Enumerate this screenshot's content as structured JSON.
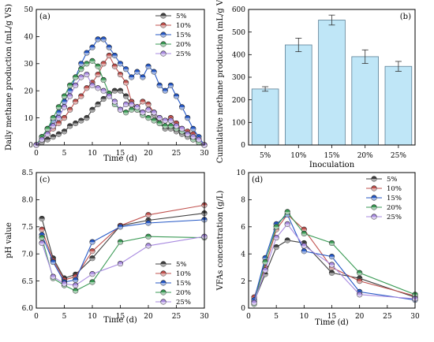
{
  "colors": {
    "5%": "#404040",
    "10%": "#c0504d",
    "15%": "#2457c5",
    "20%": "#3a9a55",
    "25%": "#a98be0",
    "bar_fill": "#bfe6f7",
    "bar_stroke": "#5b7f95"
  },
  "chart_data": [
    {
      "panel": "(a)",
      "type": "line",
      "xlabel": "Time (d)",
      "ylabel": "Daily methane production (mL/g VS)",
      "xlim": [
        0,
        30
      ],
      "ylim": [
        0,
        50
      ],
      "xticks": [
        0,
        5,
        10,
        15,
        20,
        25,
        30
      ],
      "yticks": [
        0,
        10,
        20,
        30,
        40,
        50
      ],
      "legend_position": "top-right",
      "series": [
        {
          "name": "5%",
          "x": [
            0,
            1,
            2,
            3,
            4,
            5,
            6,
            7,
            8,
            9,
            10,
            11,
            12,
            13,
            14,
            15,
            16,
            17,
            18,
            19,
            20,
            21,
            22,
            23,
            24,
            25,
            26,
            27,
            28,
            29,
            30
          ],
          "y": [
            0,
            1,
            2,
            3,
            4,
            5,
            7,
            8,
            9,
            10,
            13,
            15,
            17,
            19,
            20,
            20,
            18,
            15,
            13,
            12,
            13,
            11,
            8,
            6,
            6,
            5,
            4,
            3,
            2,
            1,
            0
          ]
        },
        {
          "name": "10%",
          "x": [
            0,
            1,
            2,
            3,
            4,
            5,
            6,
            7,
            8,
            9,
            10,
            11,
            12,
            13,
            14,
            15,
            16,
            17,
            18,
            19,
            20,
            21,
            22,
            23,
            24,
            25,
            26,
            27,
            28,
            29,
            30
          ],
          "y": [
            0,
            2,
            4,
            6,
            8,
            10,
            13,
            16,
            18,
            21,
            23,
            26,
            30,
            33,
            29,
            26,
            23,
            16,
            14,
            16,
            15,
            12,
            10,
            9,
            10,
            8,
            6,
            5,
            4,
            2,
            0
          ]
        },
        {
          "name": "15%",
          "x": [
            0,
            1,
            2,
            3,
            4,
            5,
            6,
            7,
            8,
            9,
            10,
            11,
            12,
            13,
            14,
            15,
            16,
            17,
            18,
            19,
            20,
            21,
            22,
            23,
            24,
            25,
            26,
            27,
            28,
            29,
            30
          ],
          "y": [
            0,
            3,
            6,
            9,
            12,
            16,
            20,
            25,
            30,
            34,
            36,
            39,
            39,
            36,
            33,
            30,
            28,
            25,
            27,
            25,
            29,
            27,
            22,
            20,
            22,
            18,
            14,
            10,
            6,
            3,
            0
          ]
        },
        {
          "name": "20%",
          "x": [
            0,
            1,
            2,
            3,
            4,
            5,
            6,
            7,
            8,
            9,
            10,
            11,
            12,
            13,
            14,
            15,
            16,
            17,
            18,
            19,
            20,
            21,
            22,
            23,
            24,
            25,
            26,
            27,
            28,
            29,
            30
          ],
          "y": [
            0,
            3,
            6,
            10,
            14,
            18,
            22,
            25,
            28,
            30,
            31,
            29,
            24,
            19,
            15,
            13,
            12,
            13,
            13,
            11,
            10,
            9,
            8,
            7,
            7,
            6,
            5,
            4,
            2,
            1,
            0
          ]
        },
        {
          "name": "25%",
          "x": [
            0,
            1,
            2,
            3,
            4,
            5,
            6,
            7,
            8,
            9,
            10,
            11,
            12,
            13,
            14,
            15,
            16,
            17,
            18,
            19,
            20,
            21,
            22,
            23,
            24,
            25,
            26,
            27,
            28,
            29,
            30
          ],
          "y": [
            0,
            2,
            4,
            7,
            10,
            14,
            18,
            22,
            25,
            26,
            22,
            21,
            20,
            18,
            16,
            13,
            15,
            15,
            14,
            12,
            13,
            12,
            10,
            9,
            9,
            7,
            6,
            4,
            3,
            2,
            0
          ]
        }
      ]
    },
    {
      "panel": "(b)",
      "type": "bar",
      "xlabel": "Inoculation",
      "ylabel": "Cumulative methane production (mL/g VS)",
      "categories": [
        "5%",
        "10%",
        "15%",
        "20%",
        "25%"
      ],
      "values": [
        248,
        443,
        553,
        391,
        348
      ],
      "errors": [
        10,
        30,
        22,
        30,
        22
      ],
      "ylim": [
        0,
        600
      ],
      "yticks": [
        0,
        100,
        200,
        300,
        400,
        500,
        600
      ]
    },
    {
      "panel": "(c)",
      "type": "line",
      "xlabel": "Time (d)",
      "ylabel": "pH value",
      "xlim": [
        0,
        30
      ],
      "ylim": [
        6.0,
        8.5
      ],
      "xticks": [
        0,
        5,
        10,
        15,
        20,
        25,
        30
      ],
      "yticks": [
        "6.0",
        "6.5",
        "7.0",
        "7.5",
        "8.0",
        "8.5"
      ],
      "legend_position": "bottom-right",
      "series": [
        {
          "name": "5%",
          "x": [
            1,
            3,
            5,
            7,
            10,
            15,
            20,
            30
          ],
          "y": [
            7.65,
            6.92,
            6.55,
            6.62,
            6.92,
            7.52,
            7.62,
            7.75
          ]
        },
        {
          "name": "10%",
          "x": [
            1,
            3,
            5,
            7,
            10,
            15,
            20,
            30
          ],
          "y": [
            7.45,
            6.88,
            6.52,
            6.58,
            7.05,
            7.52,
            7.72,
            7.9
          ]
        },
        {
          "name": "15%",
          "x": [
            1,
            3,
            5,
            7,
            10,
            15,
            20,
            30
          ],
          "y": [
            7.35,
            6.85,
            6.48,
            6.52,
            7.22,
            7.5,
            7.57,
            7.63
          ]
        },
        {
          "name": "20%",
          "x": [
            1,
            3,
            5,
            7,
            10,
            15,
            20,
            30
          ],
          "y": [
            7.3,
            6.55,
            6.42,
            6.32,
            6.48,
            7.22,
            7.32,
            7.3
          ]
        },
        {
          "name": "25%",
          "x": [
            1,
            3,
            5,
            7,
            10,
            15,
            20,
            30
          ],
          "y": [
            7.2,
            6.58,
            6.45,
            6.42,
            6.63,
            6.82,
            7.15,
            7.32
          ]
        }
      ]
    },
    {
      "panel": "(d)",
      "type": "line",
      "xlabel": "Time (d)",
      "ylabel": "VFAs concentration (g/L)",
      "xlim": [
        0,
        30
      ],
      "ylim": [
        0,
        10
      ],
      "xticks": [
        0,
        5,
        10,
        15,
        20,
        25,
        30
      ],
      "yticks": [
        0,
        2,
        4,
        6,
        8,
        10
      ],
      "legend_position": "top-right",
      "series": [
        {
          "name": "5%",
          "x": [
            1,
            3,
            5,
            7,
            10,
            15,
            20,
            30
          ],
          "y": [
            0.5,
            2.5,
            4.5,
            5.0,
            4.8,
            2.6,
            2.2,
            0.8
          ]
        },
        {
          "name": "10%",
          "x": [
            1,
            3,
            5,
            7,
            10,
            15,
            20,
            30
          ],
          "y": [
            0.8,
            3.0,
            5.8,
            6.9,
            5.8,
            3.0,
            2.0,
            0.9
          ]
        },
        {
          "name": "15%",
          "x": [
            1,
            3,
            5,
            7,
            10,
            15,
            20,
            30
          ],
          "y": [
            0.6,
            3.7,
            6.2,
            6.9,
            4.2,
            3.8,
            1.2,
            0.6
          ]
        },
        {
          "name": "20%",
          "x": [
            1,
            3,
            5,
            7,
            10,
            15,
            20,
            30
          ],
          "y": [
            0.3,
            3.4,
            6.0,
            7.1,
            5.5,
            4.8,
            2.6,
            1.0
          ]
        },
        {
          "name": "25%",
          "x": [
            1,
            3,
            5,
            7,
            10,
            15,
            20,
            30
          ],
          "y": [
            0.4,
            2.8,
            5.2,
            6.2,
            4.6,
            3.2,
            1.0,
            0.7
          ]
        }
      ]
    }
  ]
}
